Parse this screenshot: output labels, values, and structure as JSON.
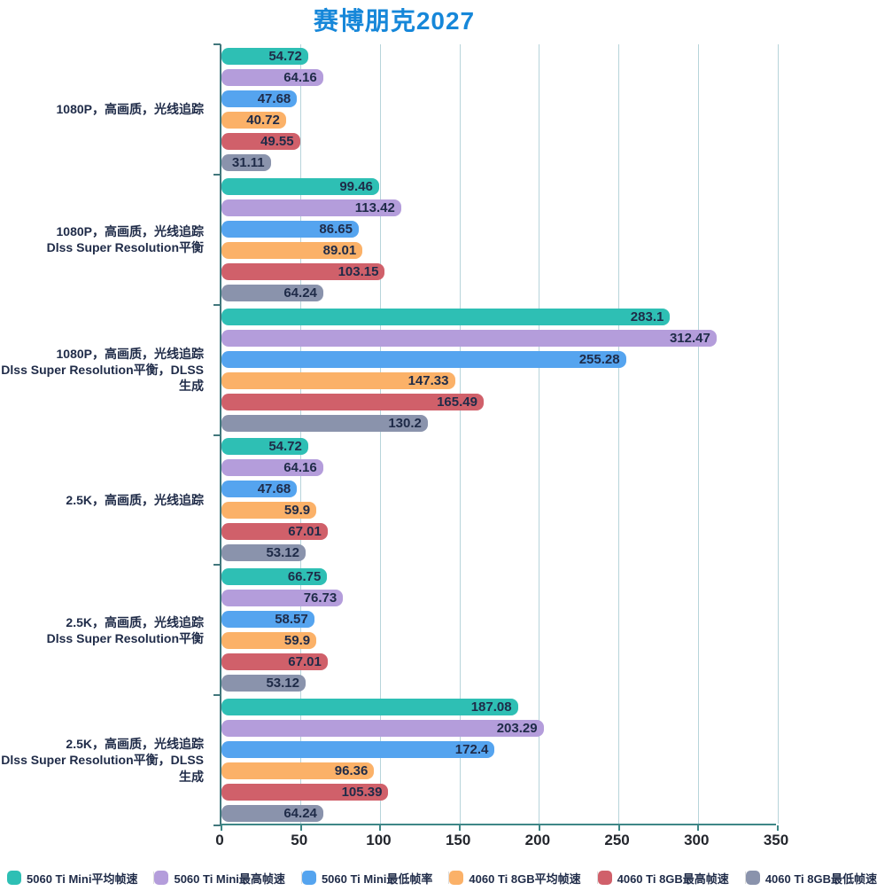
{
  "title": "赛博朋克2027",
  "colors": {
    "title": "#1687d9",
    "axis": "#3e8787",
    "grid": "#b7d4da",
    "text": "#1f2b48",
    "tick_text": "#23262d"
  },
  "chart_data": {
    "type": "bar",
    "orientation": "horizontal",
    "title": "赛博朋克2027",
    "value_labels": true,
    "grid": true,
    "legend_position": "bottom",
    "xlim": [
      0,
      350
    ],
    "xticks": [
      0,
      50,
      100,
      150,
      200,
      250,
      300,
      350
    ],
    "categories": [
      "1080P，高画质，光线追踪",
      "1080P，高画质，光线追踪\nDlss Super Resolution平衡",
      "1080P，高画质，光线追踪\nDlss Super Resolution平衡，DLSS生成",
      "2.5K，高画质，光线追踪",
      "2.5K，高画质，光线追踪\nDlss Super Resolution平衡",
      "2.5K，高画质，光线追踪\nDlss Super Resolution平衡，DLSS生成"
    ],
    "series": [
      {
        "name": "5060 Ti Mini平均帧速",
        "color": "#2ebfb4",
        "values": [
          54.72,
          99.46,
          283.1,
          54.72,
          66.75,
          187.08
        ]
      },
      {
        "name": "5060 Ti Mini最高帧速",
        "color": "#b49ddb",
        "values": [
          64.16,
          113.42,
          312.47,
          64.16,
          76.73,
          203.29
        ]
      },
      {
        "name": "5060 Ti Mini最低帧率",
        "color": "#55a4ef",
        "values": [
          47.68,
          86.65,
          255.28,
          47.68,
          58.57,
          172.4
        ]
      },
      {
        "name": "4060 Ti 8GB平均帧速",
        "color": "#fbb168",
        "values": [
          40.72,
          89.01,
          147.33,
          59.9,
          59.9,
          96.36
        ]
      },
      {
        "name": "4060 Ti 8GB最高帧速",
        "color": "#d0606a",
        "values": [
          49.55,
          103.15,
          165.49,
          67.01,
          67.01,
          105.39
        ]
      },
      {
        "name": "4060 Ti 8GB最低帧速",
        "color": "#8a93ac",
        "values": [
          31.11,
          64.24,
          130.2,
          53.12,
          53.12,
          64.24
        ]
      }
    ]
  }
}
